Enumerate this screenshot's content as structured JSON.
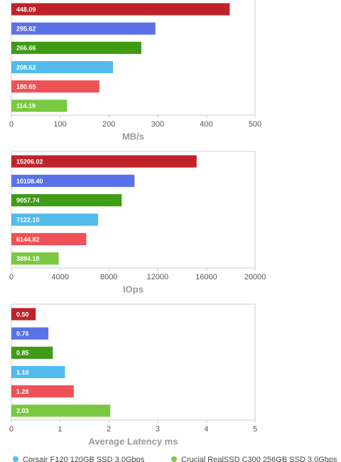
{
  "chart_data": [
    {
      "type": "bar",
      "orientation": "horizontal",
      "x_label": "MB/s",
      "values": [
        448.09,
        295.62,
        266.66,
        208.62,
        180.65,
        114.19
      ],
      "value_labels": [
        "448.09",
        "295.62",
        "266.66",
        "208.62",
        "180.65",
        "114.19"
      ],
      "colors": [
        "#c0222a",
        "#5a72e8",
        "#3f9a14",
        "#52bbec",
        "#ee5256",
        "#78c940"
      ],
      "xlim": [
        0,
        500
      ],
      "xticks": [
        0,
        100,
        200,
        300,
        400,
        500
      ]
    },
    {
      "type": "bar",
      "orientation": "horizontal",
      "x_label": "IOps",
      "values": [
        15206.02,
        10108.4,
        9057.74,
        7122.1,
        6144.82,
        3884.18
      ],
      "value_labels": [
        "15206.02",
        "10108.40",
        "9057.74",
        "7122.10",
        "6144.82",
        "3884.18"
      ],
      "colors": [
        "#c0222a",
        "#5a72e8",
        "#3f9a14",
        "#52bbec",
        "#ee5256",
        "#78c940"
      ],
      "xlim": [
        0,
        20000
      ],
      "xticks": [
        0,
        4000,
        8000,
        12000,
        16000,
        20000
      ]
    },
    {
      "type": "bar",
      "orientation": "horizontal",
      "x_label": "Average Latency ms",
      "values": [
        0.5,
        0.76,
        0.85,
        1.1,
        1.28,
        2.03
      ],
      "value_labels": [
        "0.50",
        "0.76",
        "0.85",
        "1.10",
        "1.28",
        "2.03"
      ],
      "colors": [
        "#c0222a",
        "#5a72e8",
        "#3f9a14",
        "#52bbec",
        "#ee5256",
        "#78c940"
      ],
      "xlim": [
        0,
        5
      ],
      "xticks": [
        0,
        1,
        2,
        3,
        4,
        5
      ]
    }
  ],
  "legend": [
    {
      "name": "Corsair F120 120GB SSD 3.0Gbps",
      "color": "#52bbec"
    },
    {
      "name": "Crucial RealSSD C300 256GB SSD 3.0Gbps",
      "color": "#78c940"
    }
  ]
}
